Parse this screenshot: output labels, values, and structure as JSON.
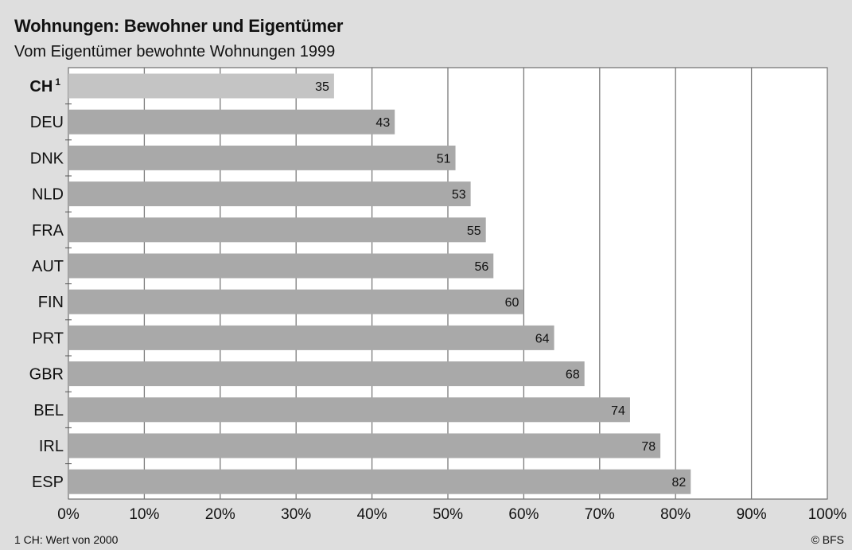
{
  "chart_data": {
    "type": "bar",
    "orientation": "horizontal",
    "title": "Wohnungen: Bewohner und Eigentümer",
    "subtitle": "Vom Eigentümer bewohnte Wohnungen 1999",
    "categories": [
      "CH",
      "DEU",
      "DNK",
      "NLD",
      "FRA",
      "AUT",
      "FIN",
      "PRT",
      "GBR",
      "BEL",
      "IRL",
      "ESP"
    ],
    "category_superscripts": {
      "CH": "1"
    },
    "highlight_category": "CH",
    "values": [
      35,
      43,
      51,
      53,
      55,
      56,
      60,
      64,
      68,
      74,
      78,
      82
    ],
    "data_labels": [
      "35",
      "43",
      "51",
      "53",
      "55",
      "56",
      "60",
      "64",
      "68",
      "74",
      "78",
      "82"
    ],
    "xlim": [
      0,
      100
    ],
    "x_ticks": [
      0,
      10,
      20,
      30,
      40,
      50,
      60,
      70,
      80,
      90,
      100
    ],
    "x_tick_labels": [
      "0%",
      "10%",
      "20%",
      "30%",
      "40%",
      "50%",
      "60%",
      "70%",
      "80%",
      "90%",
      "100%"
    ],
    "grid": true,
    "xlabel": "",
    "ylabel": "",
    "colors": {
      "bar": "#a9a9a9",
      "bar_highlight": "#c4c4c4",
      "plot_background": "#ffffff",
      "page_background": "#dedede",
      "grid": "#7a7a7a"
    }
  },
  "footnote": "1 CH: Wert von 2000",
  "source": "© BFS"
}
